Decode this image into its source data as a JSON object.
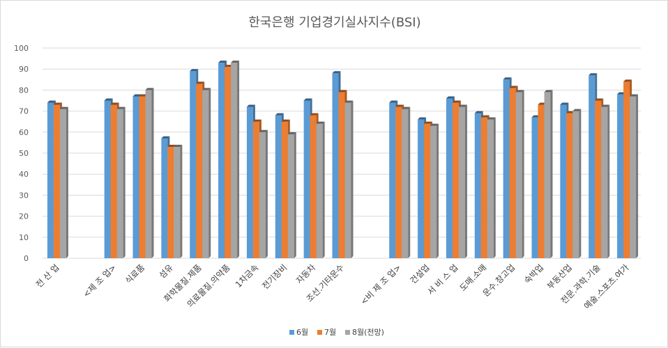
{
  "chart_data": {
    "type": "bar",
    "title": "한국은행 기업경기실사지수(BSI)",
    "xlabel": "",
    "ylabel": "",
    "ylim": [
      0,
      100
    ],
    "yticks": [
      0,
      10,
      20,
      30,
      40,
      50,
      60,
      70,
      80,
      90,
      100
    ],
    "grid": true,
    "legend_position": "bottom",
    "categories": [
      "전 산 업",
      "",
      "<제 조 업>",
      "식료품",
      "섬유",
      "화학물질.제품",
      "의료물질.의약품",
      "1차금속",
      "전기장비",
      "자동차",
      "조선.기타운수",
      "",
      "<비 제 조 업>",
      "건설업",
      "서 비 스 업",
      "도매.소매",
      "운수.창고업",
      "숙박업",
      "부동산업",
      "전문.과학.기술",
      "예술.스포츠.여가"
    ],
    "series": [
      {
        "name": "6월",
        "color": "#5B9BD5",
        "values": [
          74,
          null,
          75,
          77,
          57,
          89,
          93,
          72,
          68,
          75,
          88,
          null,
          74,
          66,
          76,
          69,
          85,
          67,
          73,
          87,
          78
        ]
      },
      {
        "name": "7월",
        "color": "#ED7D31",
        "values": [
          73,
          null,
          73,
          77,
          53,
          83,
          91,
          65,
          65,
          68,
          79,
          null,
          72,
          64,
          74,
          67,
          81,
          73,
          69,
          75,
          84
        ]
      },
      {
        "name": "8월(전망)",
        "color": "#A5A5A5",
        "values": [
          71,
          null,
          71,
          80,
          53,
          80,
          93,
          60,
          59,
          64,
          74,
          null,
          71,
          63,
          72,
          66,
          79,
          79,
          70,
          72,
          77
        ]
      }
    ]
  }
}
